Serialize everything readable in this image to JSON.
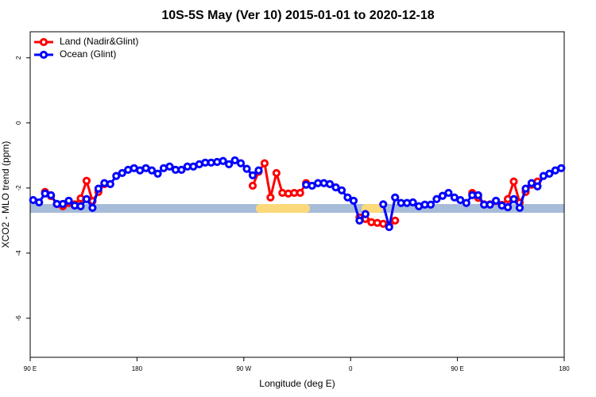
{
  "chart_data": {
    "type": "line",
    "title": "10S-5S May (Ver 10)   2015-01-01 to 2020-12-18",
    "xlabel": "Longitude (deg E)",
    "ylabel": "XCO2 - MLO trend (ppm)",
    "legend": "top-left",
    "xlim": [
      90,
      540
    ],
    "ylim": [
      -7.2,
      2.8
    ],
    "xticks": [
      {
        "value": 90,
        "label": "90 E"
      },
      180,
      {
        "value": 270,
        "label": "90 W"
      },
      {
        "value": 360,
        "label": "0"
      },
      {
        "value": 450,
        "label": "90 E"
      },
      {
        "value": 540,
        "label": "180"
      }
    ],
    "yticks": [
      2,
      0,
      -2,
      -4,
      -6
    ],
    "x": [
      92.5,
      97.5,
      102.5,
      107.5,
      112.5,
      117.5,
      122.5,
      127.5,
      132.5,
      137.5,
      142.5,
      147.5,
      152.5,
      157.5,
      162.5,
      167.5,
      172.5,
      177.5,
      182.5,
      187.5,
      192.5,
      197.5,
      202.5,
      207.5,
      212.5,
      217.5,
      222.5,
      227.5,
      232.5,
      237.5,
      242.5,
      247.5,
      252.5,
      257.5,
      262.5,
      267.5,
      272.5,
      277.5,
      282.5,
      287.5,
      292.5,
      297.5,
      302.5,
      307.5,
      312.5,
      317.5,
      322.5,
      327.5,
      332.5,
      337.5,
      342.5,
      347.5,
      352.5,
      357.5,
      362.5,
      367.5,
      372.5,
      377.5,
      382.5,
      387.5,
      392.5,
      397.5,
      402.5,
      407.5,
      412.5,
      417.5,
      422.5,
      427.5,
      432.5,
      437.5,
      442.5,
      447.5,
      452.5,
      457.5,
      462.5,
      467.5,
      472.5,
      477.5,
      482.5,
      487.5,
      492.5,
      497.5,
      502.5,
      507.5,
      512.5,
      517.5,
      522.5,
      527.5,
      532.5,
      537.5
    ],
    "series": [
      {
        "name": "Land (Nadir&Glint)",
        "color": "#ff0000",
        "values": [
          null,
          null,
          -2.12,
          -2.25,
          -2.49,
          -2.56,
          -2.46,
          -2.5,
          -2.32,
          -1.78,
          -2.4,
          -2.12,
          -1.88,
          null,
          null,
          null,
          null,
          null,
          null,
          null,
          null,
          null,
          null,
          null,
          null,
          null,
          null,
          null,
          null,
          null,
          null,
          null,
          null,
          null,
          null,
          null,
          null,
          -1.93,
          -1.5,
          -1.24,
          -2.29,
          -1.54,
          -2.15,
          -2.17,
          -2.15,
          -2.15,
          -1.85,
          null,
          null,
          null,
          null,
          null,
          null,
          null,
          null,
          -2.9,
          -2.95,
          -3.05,
          -3.07,
          -3.1,
          -3.15,
          -3.0,
          null,
          null,
          null,
          null,
          null,
          null,
          null,
          null,
          null,
          null,
          null,
          null,
          -2.15,
          -2.3,
          -2.5,
          -2.5,
          -2.4,
          -2.52,
          -2.34,
          -1.8,
          -2.45,
          -2.12,
          -1.9,
          -1.8,
          null,
          null,
          null,
          null
        ]
      },
      {
        "name": "Ocean (Glint)",
        "color": "#0000ff",
        "values": [
          -2.37,
          -2.44,
          -2.17,
          -2.22,
          -2.49,
          -2.49,
          -2.39,
          -2.54,
          -2.56,
          -2.34,
          -2.61,
          -2.02,
          -1.85,
          -1.88,
          -1.63,
          -1.54,
          -1.44,
          -1.39,
          -1.46,
          -1.39,
          -1.46,
          -1.56,
          -1.39,
          -1.34,
          -1.44,
          -1.44,
          -1.34,
          -1.34,
          -1.27,
          -1.22,
          -1.22,
          -1.2,
          -1.17,
          -1.27,
          -1.15,
          -1.24,
          -1.41,
          -1.61,
          -1.46,
          null,
          null,
          null,
          null,
          null,
          null,
          null,
          -1.9,
          -1.93,
          -1.85,
          -1.85,
          -1.88,
          -1.98,
          -2.07,
          -2.29,
          -2.39,
          -3.0,
          -2.8,
          null,
          null,
          -2.5,
          -3.2,
          -2.29,
          -2.46,
          -2.46,
          -2.44,
          -2.56,
          -2.51,
          -2.51,
          -2.34,
          -2.24,
          -2.15,
          -2.29,
          -2.37,
          -2.46,
          -2.22,
          -2.22,
          -2.51,
          -2.51,
          -2.39,
          -2.54,
          -2.59,
          -2.34,
          -2.61,
          -2.02,
          -1.85,
          -1.95,
          -1.63,
          -1.56,
          -1.46,
          -1.39
        ]
      }
    ]
  }
}
